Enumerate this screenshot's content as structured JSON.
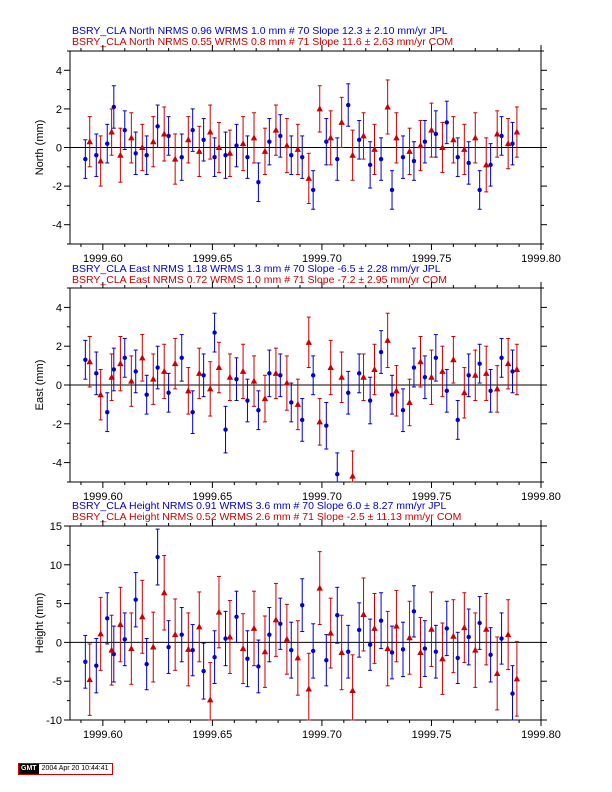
{
  "chart_data": [
    {
      "type": "scatter",
      "ylabel": "North (mm)",
      "ylim": [
        -5,
        5
      ],
      "yticks": [
        -4,
        -2,
        0,
        2,
        4
      ],
      "xlim": [
        1999.585,
        1999.8
      ],
      "xticks": [
        1999.6,
        1999.65,
        1999.7,
        1999.75,
        1999.8
      ],
      "xtick_labels": [
        "1999.60",
        "1999.65",
        "1999.70",
        "1999.75",
        "1999.80"
      ],
      "legend_lines": [
        {
          "text": "BSRY_CLA North NRMS 0.96 WRMS  1.0 mm # 70 Slope   12.3 ±  2.10 mm/yr JPL",
          "color": "#0000cc"
        },
        {
          "text": "BSRY_CLA North NRMS 0.55 WRMS  0.8 mm # 71 Slope   11.6 ±  2.63 mm/yr COM",
          "color": "#cc0000"
        }
      ],
      "series": [
        {
          "color": "#0000cc",
          "marker": "circle",
          "x": [
            1999.592,
            1999.597,
            1999.602,
            1999.605,
            1999.61,
            1999.615,
            1999.62,
            1999.625,
            1999.63,
            1999.636,
            1999.641,
            1999.646,
            1999.651,
            1999.656,
            1999.661,
            1999.666,
            1999.671,
            1999.676,
            1999.681,
            1999.686,
            1999.691,
            1999.696,
            1999.702,
            1999.707,
            1999.712,
            1999.717,
            1999.722,
            1999.727,
            1999.732,
            1999.737,
            1999.742,
            1999.747,
            1999.752,
            1999.757,
            1999.762,
            1999.767,
            1999.772,
            1999.777,
            1999.782,
            1999.787
          ],
          "y": [
            -0.6,
            -0.4,
            0.2,
            2.1,
            0.9,
            -0.3,
            -0.4,
            1.1,
            0.6,
            -0.5,
            0.9,
            0.4,
            -0.5,
            -0.4,
            0.1,
            -0.5,
            -1.8,
            0.3,
            0.6,
            -0.4,
            -0.5,
            -2.2,
            0.3,
            -0.6,
            2.2,
            0.4,
            -0.9,
            -0.6,
            -2.2,
            -0.5,
            -0.7,
            0.3,
            0.7,
            1.3,
            -0.5,
            -0.8,
            -2.2,
            -0.9,
            0.6,
            0.2
          ],
          "err": [
            1.0,
            1.1,
            1.0,
            1.1,
            1.0,
            1.1,
            1.0,
            1.1,
            1.0,
            1.2,
            1.1,
            1.1,
            1.0,
            1.2,
            1.1,
            1.1,
            1.0,
            1.2,
            1.1,
            1.0,
            1.1,
            1.0,
            1.2,
            1.1,
            1.1,
            1.0,
            1.2,
            1.1,
            1.0,
            1.1,
            1.0,
            1.1,
            1.2,
            1.1,
            1.0,
            1.1,
            1.0,
            1.1,
            1.0,
            1.1
          ]
        },
        {
          "color": "#cc0000",
          "marker": "triangle",
          "x": [
            1999.594,
            1999.599,
            1999.604,
            1999.608,
            1999.613,
            1999.618,
            1999.623,
            1999.628,
            1999.633,
            1999.639,
            1999.644,
            1999.649,
            1999.653,
            1999.658,
            1999.664,
            1999.669,
            1999.674,
            1999.679,
            1999.684,
            1999.689,
            1999.694,
            1999.699,
            1999.704,
            1999.709,
            1999.714,
            1999.719,
            1999.724,
            1999.73,
            1999.734,
            1999.74,
            1999.745,
            1999.75,
            1999.755,
            1999.76,
            1999.765,
            1999.77,
            1999.775,
            1999.78,
            1999.785,
            1999.789
          ],
          "y": [
            0.3,
            -0.7,
            0.8,
            -0.4,
            0.5,
            0.0,
            0.3,
            0.7,
            -0.6,
            0.4,
            -0.2,
            0.8,
            0.0,
            -0.3,
            0.2,
            0.5,
            -0.2,
            0.9,
            0.1,
            -0.1,
            -1.6,
            2.0,
            0.5,
            1.3,
            -0.4,
            0.6,
            -0.1,
            2.1,
            0.5,
            -0.2,
            0.1,
            0.9,
            0.0,
            0.4,
            -0.1,
            0.5,
            -0.9,
            0.7,
            0.2,
            0.8
          ],
          "err": [
            1.3,
            1.3,
            1.2,
            1.4,
            1.3,
            1.2,
            1.3,
            1.4,
            1.3,
            1.2,
            1.3,
            1.4,
            1.3,
            1.2,
            1.4,
            1.3,
            1.2,
            1.3,
            1.4,
            1.3,
            1.3,
            1.2,
            1.4,
            1.3,
            1.3,
            1.2,
            1.3,
            1.4,
            1.3,
            1.2,
            1.3,
            1.4,
            1.3,
            1.2,
            1.3,
            1.3,
            1.4,
            1.2,
            1.3,
            1.3
          ]
        }
      ]
    },
    {
      "type": "scatter",
      "ylabel": "East (mm)",
      "ylim": [
        -5,
        5
      ],
      "yticks": [
        -4,
        -2,
        0,
        2,
        4
      ],
      "xlim": [
        1999.585,
        1999.8
      ],
      "xticks": [
        1999.6,
        1999.65,
        1999.7,
        1999.75,
        1999.8
      ],
      "xtick_labels": [
        "1999.60",
        "1999.65",
        "1999.70",
        "1999.75",
        "1999.80"
      ],
      "legend_lines": [
        {
          "text": "BSRY_CLA East NRMS 1.18 WRMS  1.3 mm # 70 Slope   -6.5 ±  2.28 mm/yr JPL",
          "color": "#0000cc"
        },
        {
          "text": "BSRY_CLA East NRMS 0.72 WRMS  1.0 mm # 71 Slope   -7.2 ±  2.95 mm/yr COM",
          "color": "#cc0000"
        }
      ],
      "series": [
        {
          "color": "#0000cc",
          "marker": "circle",
          "x": [
            1999.592,
            1999.597,
            1999.602,
            1999.605,
            1999.61,
            1999.615,
            1999.62,
            1999.625,
            1999.63,
            1999.636,
            1999.641,
            1999.646,
            1999.651,
            1999.656,
            1999.661,
            1999.666,
            1999.671,
            1999.676,
            1999.681,
            1999.686,
            1999.691,
            1999.696,
            1999.702,
            1999.707,
            1999.712,
            1999.717,
            1999.722,
            1999.727,
            1999.732,
            1999.737,
            1999.742,
            1999.747,
            1999.752,
            1999.757,
            1999.762,
            1999.767,
            1999.772,
            1999.777,
            1999.782,
            1999.787
          ],
          "y": [
            1.3,
            0.6,
            -1.4,
            0.8,
            1.4,
            0.7,
            -0.5,
            0.9,
            -0.4,
            1.4,
            -1.4,
            0.5,
            2.7,
            -2.3,
            0.3,
            -0.8,
            -1.3,
            0.6,
            0.5,
            -0.9,
            -1.8,
            0.5,
            -2.1,
            -4.6,
            -0.4,
            0.6,
            -0.8,
            1.7,
            -0.5,
            -1.3,
            0.9,
            0.4,
            1.4,
            -0.3,
            -1.8,
            0.5,
            1.1,
            -0.3,
            1.4,
            0.7
          ],
          "err": [
            1.0,
            1.1,
            1.0,
            1.1,
            1.0,
            1.1,
            1.0,
            1.1,
            1.0,
            1.2,
            1.1,
            1.1,
            1.0,
            1.2,
            1.1,
            1.1,
            1.0,
            1.2,
            1.1,
            1.0,
            1.1,
            1.0,
            1.2,
            1.1,
            1.1,
            1.0,
            1.2,
            1.1,
            1.0,
            1.1,
            1.0,
            1.1,
            1.2,
            1.1,
            1.0,
            1.1,
            1.0,
            1.1,
            1.0,
            1.1
          ]
        },
        {
          "color": "#cc0000",
          "marker": "triangle",
          "x": [
            1999.594,
            1999.599,
            1999.604,
            1999.608,
            1999.613,
            1999.618,
            1999.623,
            1999.628,
            1999.633,
            1999.639,
            1999.644,
            1999.649,
            1999.653,
            1999.658,
            1999.664,
            1999.669,
            1999.674,
            1999.679,
            1999.684,
            1999.689,
            1999.694,
            1999.699,
            1999.704,
            1999.709,
            1999.714,
            1999.719,
            1999.724,
            1999.73,
            1999.734,
            1999.74,
            1999.745,
            1999.75,
            1999.755,
            1999.76,
            1999.765,
            1999.77,
            1999.775,
            1999.78,
            1999.785,
            1999.789
          ],
          "y": [
            1.2,
            -0.5,
            0.4,
            1.1,
            0.2,
            1.4,
            0.3,
            0.7,
            1.1,
            -0.3,
            0.6,
            -0.2,
            0.9,
            0.4,
            0.7,
            0.2,
            -0.7,
            0.6,
            0.1,
            -1.0,
            2.2,
            -1.9,
            0.9,
            0.4,
            -4.7,
            0.4,
            0.8,
            2.3,
            -0.3,
            -0.9,
            1.2,
            0.4,
            0.7,
            1.3,
            -0.4,
            0.5,
            0.6,
            -0.2,
            1.1,
            0.8
          ],
          "err": [
            1.3,
            1.3,
            1.2,
            1.4,
            1.3,
            1.2,
            1.3,
            1.4,
            1.3,
            1.2,
            1.3,
            1.4,
            1.3,
            1.2,
            1.4,
            1.3,
            1.2,
            1.3,
            1.4,
            1.3,
            1.3,
            1.2,
            1.4,
            1.3,
            1.3,
            1.2,
            1.3,
            1.4,
            1.3,
            1.2,
            1.3,
            1.4,
            1.3,
            1.2,
            1.3,
            1.3,
            1.4,
            1.2,
            1.3,
            1.3
          ]
        }
      ]
    },
    {
      "type": "scatter",
      "ylabel": "Height (mm)",
      "ylim": [
        -10,
        15
      ],
      "yticks": [
        -10,
        -5,
        0,
        5,
        10,
        15
      ],
      "xlim": [
        1999.585,
        1999.8
      ],
      "xticks": [
        1999.6,
        1999.65,
        1999.7,
        1999.75,
        1999.8
      ],
      "xtick_labels": [
        "1999.60",
        "1999.65",
        "1999.70",
        "1999.75",
        "1999.80"
      ],
      "legend_lines": [
        {
          "text": "BSRY_CLA Height NRMS 0.91 WRMS  3.6 mm # 70 Slope    6.0 ±  8.27 mm/yr JPL",
          "color": "#0000cc"
        },
        {
          "text": "BSRY_CLA Height NRMS 0.52 WRMS  2.6 mm # 71 Slope   -2.5 ± 11.13 mm/yr COM",
          "color": "#cc0000"
        }
      ],
      "series": [
        {
          "color": "#0000cc",
          "marker": "circle",
          "x": [
            1999.592,
            1999.597,
            1999.602,
            1999.605,
            1999.61,
            1999.615,
            1999.62,
            1999.625,
            1999.63,
            1999.636,
            1999.641,
            1999.646,
            1999.651,
            1999.656,
            1999.661,
            1999.666,
            1999.671,
            1999.676,
            1999.681,
            1999.686,
            1999.691,
            1999.696,
            1999.702,
            1999.707,
            1999.712,
            1999.717,
            1999.722,
            1999.727,
            1999.732,
            1999.737,
            1999.742,
            1999.747,
            1999.752,
            1999.757,
            1999.762,
            1999.767,
            1999.772,
            1999.777,
            1999.782,
            1999.787
          ],
          "y": [
            -2.5,
            -3.0,
            3.1,
            -1.5,
            0.4,
            5.5,
            -2.8,
            11.0,
            -0.6,
            1.0,
            -1.0,
            -3.7,
            -1.9,
            0.5,
            3.3,
            -2.1,
            -3.1,
            1.0,
            2.4,
            -1.0,
            4.8,
            -1.1,
            -2.3,
            3.5,
            -1.2,
            1.6,
            -0.3,
            2.8,
            -1.3,
            -0.9,
            4.0,
            -0.8,
            -1.2,
            1.8,
            -2.0,
            0.7,
            2.5,
            -1.6,
            0.5,
            -6.6
          ],
          "err": [
            3.4,
            3.5,
            3.3,
            3.6,
            3.4,
            3.5,
            3.3,
            3.6,
            3.4,
            3.5,
            3.3,
            3.6,
            3.4,
            3.5,
            3.3,
            3.6,
            3.4,
            3.5,
            3.3,
            3.6,
            3.4,
            3.5,
            3.3,
            3.6,
            3.4,
            3.5,
            3.3,
            3.6,
            3.4,
            3.5,
            3.3,
            3.6,
            3.4,
            3.5,
            3.3,
            3.6,
            3.4,
            3.5,
            3.3,
            3.6
          ]
        },
        {
          "color": "#cc0000",
          "marker": "triangle",
          "x": [
            1999.594,
            1999.599,
            1999.604,
            1999.608,
            1999.613,
            1999.618,
            1999.623,
            1999.628,
            1999.633,
            1999.639,
            1999.644,
            1999.649,
            1999.653,
            1999.658,
            1999.664,
            1999.669,
            1999.674,
            1999.679,
            1999.684,
            1999.689,
            1999.694,
            1999.699,
            1999.704,
            1999.709,
            1999.714,
            1999.719,
            1999.724,
            1999.73,
            1999.734,
            1999.74,
            1999.745,
            1999.75,
            1999.755,
            1999.76,
            1999.765,
            1999.77,
            1999.775,
            1999.78,
            1999.785,
            1999.789
          ],
          "y": [
            -4.8,
            1.1,
            -1.0,
            2.3,
            -0.8,
            3.3,
            -0.6,
            6.4,
            1.0,
            -0.9,
            2.0,
            -7.4,
            3.9,
            0.7,
            -0.8,
            1.8,
            -1.2,
            2.9,
            0.4,
            -2.0,
            -6.0,
            7.0,
            1.2,
            -1.3,
            -6.2,
            3.6,
            1.8,
            -0.8,
            2.1,
            0.6,
            -1.3,
            1.7,
            -2.1,
            0.8,
            1.9,
            -1.0,
            1.7,
            -4.0,
            1.0,
            -4.7
          ],
          "err": [
            4.6,
            4.7,
            4.5,
            4.8,
            4.6,
            4.7,
            4.5,
            4.8,
            4.6,
            4.7,
            4.5,
            4.8,
            4.6,
            4.7,
            4.5,
            4.8,
            4.6,
            4.7,
            4.5,
            4.8,
            4.6,
            4.7,
            4.5,
            4.8,
            4.6,
            4.7,
            4.5,
            4.8,
            4.6,
            4.7,
            4.5,
            4.8,
            4.6,
            4.7,
            4.5,
            4.8,
            4.6,
            4.7,
            4.5,
            4.8
          ]
        }
      ]
    }
  ],
  "footer": {
    "logo": "GMT",
    "timestamp": "2004 Apr 20 10:44:41"
  }
}
